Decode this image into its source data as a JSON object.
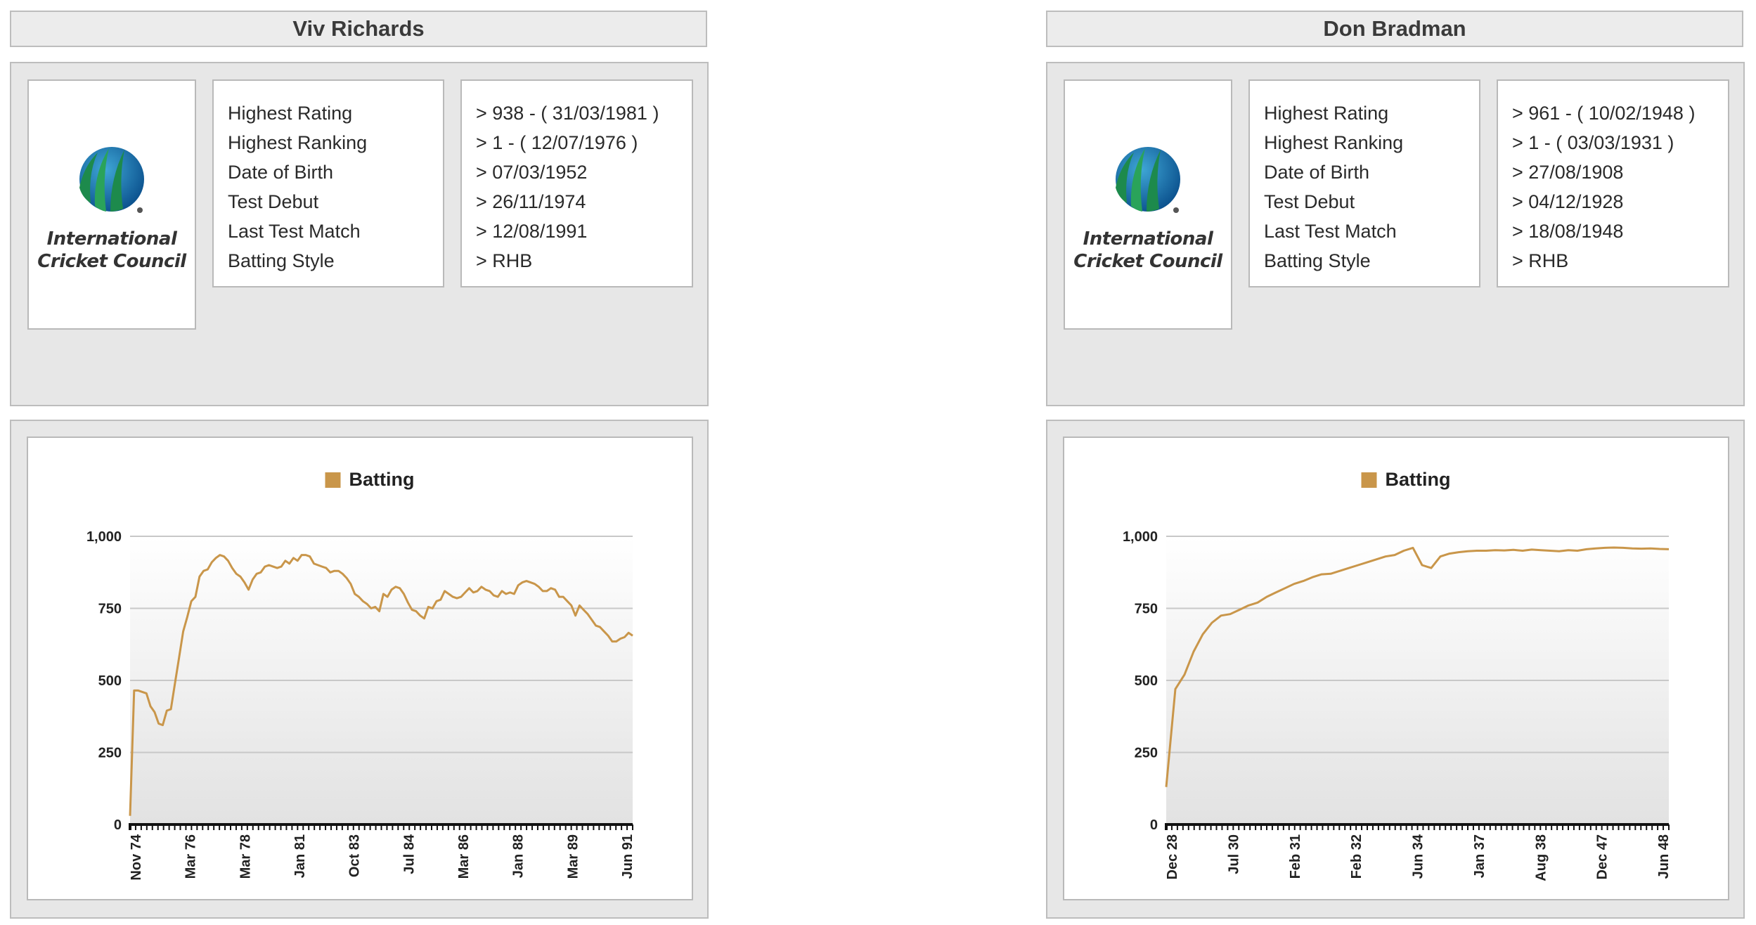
{
  "players": [
    {
      "name": "Viv Richards",
      "logo": {
        "line1": "International",
        "line2": "Cricket Council"
      },
      "stats": [
        {
          "label": "Highest Rating",
          "value": "> 938 - ( 31/03/1981 )"
        },
        {
          "label": "Highest Ranking",
          "value": "> 1 - ( 12/07/1976 )"
        },
        {
          "label": "Date of Birth",
          "value": "> 07/03/1952"
        },
        {
          "label": "Test Debut",
          "value": "> 26/11/1974"
        },
        {
          "label": "Last Test Match",
          "value": "> 12/08/1991"
        },
        {
          "label": "Batting Style",
          "value": "> RHB"
        }
      ]
    },
    {
      "name": "Don Bradman",
      "logo": {
        "line1": "International",
        "line2": "Cricket Council"
      },
      "stats": [
        {
          "label": "Highest Rating",
          "value": "> 961 - ( 10/02/1948 )"
        },
        {
          "label": "Highest Ranking",
          "value": "> 1 - ( 03/03/1931 )"
        },
        {
          "label": "Date of Birth",
          "value": "> 27/08/1908"
        },
        {
          "label": "Test Debut",
          "value": "> 04/12/1928"
        },
        {
          "label": "Last Test Match",
          "value": "> 18/08/1948"
        },
        {
          "label": "Batting Style",
          "value": "> RHB"
        }
      ]
    }
  ],
  "chart_data": [
    {
      "type": "line",
      "title": "",
      "xlabel": "",
      "ylabel": "",
      "ylim": [
        0,
        1000
      ],
      "yticks": [
        0,
        250,
        500,
        750,
        1000
      ],
      "ytick_labels": [
        "0",
        "250",
        "500",
        "750",
        "1,000"
      ],
      "grid": true,
      "legend": "top-center",
      "x_labels": [
        "Nov 74",
        "Mar 76",
        "Mar 78",
        "Jan 81",
        "Oct 83",
        "Jul 84",
        "Mar 86",
        "Jan 88",
        "Mar 89",
        "Jun 91"
      ],
      "series": [
        {
          "name": "Batting",
          "color": "#c9964a",
          "values": [
            30,
            465,
            465,
            460,
            455,
            410,
            390,
            350,
            345,
            395,
            400,
            490,
            580,
            670,
            720,
            775,
            790,
            860,
            880,
            885,
            910,
            925,
            935,
            930,
            915,
            890,
            870,
            860,
            840,
            815,
            850,
            870,
            875,
            895,
            900,
            895,
            890,
            895,
            915,
            905,
            925,
            915,
            935,
            935,
            930,
            905,
            900,
            895,
            890,
            875,
            880,
            880,
            870,
            855,
            835,
            800,
            790,
            775,
            765,
            750,
            755,
            740,
            800,
            790,
            815,
            825,
            820,
            800,
            770,
            745,
            740,
            725,
            715,
            755,
            750,
            775,
            780,
            810,
            800,
            790,
            785,
            790,
            805,
            820,
            805,
            810,
            825,
            815,
            810,
            795,
            790,
            810,
            800,
            805,
            800,
            830,
            840,
            845,
            840,
            835,
            825,
            810,
            810,
            820,
            815,
            790,
            790,
            775,
            760,
            725,
            760,
            745,
            730,
            710,
            690,
            685,
            670,
            655,
            635,
            635,
            645,
            650,
            665,
            655
          ]
        }
      ]
    },
    {
      "type": "line",
      "title": "",
      "xlabel": "",
      "ylabel": "",
      "ylim": [
        0,
        1000
      ],
      "yticks": [
        0,
        250,
        500,
        750,
        1000
      ],
      "ytick_labels": [
        "0",
        "250",
        "500",
        "750",
        "1,000"
      ],
      "grid": true,
      "legend": "top-center",
      "x_labels": [
        "Dec 28",
        "Jul 30",
        "Feb 31",
        "Feb 32",
        "Jun 34",
        "Jan 37",
        "Aug 38",
        "Dec 47",
        "Jun 48"
      ],
      "series": [
        {
          "name": "Batting",
          "color": "#c9964a",
          "values": [
            130,
            470,
            520,
            600,
            660,
            700,
            725,
            730,
            745,
            760,
            770,
            790,
            805,
            820,
            835,
            845,
            858,
            868,
            870,
            880,
            890,
            900,
            910,
            920,
            930,
            935,
            950,
            960,
            900,
            890,
            930,
            940,
            945,
            948,
            950,
            950,
            952,
            951,
            953,
            950,
            954,
            952,
            950,
            948,
            952,
            950,
            955,
            958,
            960,
            961,
            960,
            958,
            957,
            958,
            956,
            955
          ]
        }
      ]
    }
  ]
}
